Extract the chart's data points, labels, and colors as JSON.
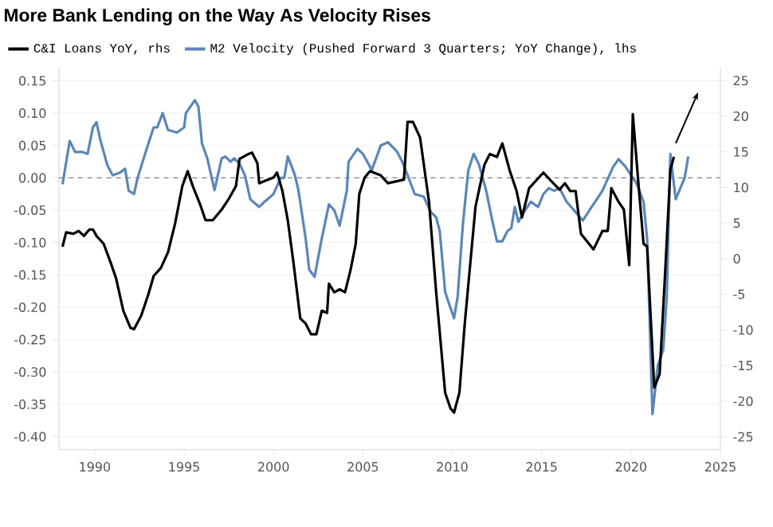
{
  "chart_data": {
    "type": "line",
    "title": "More Bank Lending on the Way As Velocity Rises",
    "xlim": [
      1988,
      2025
    ],
    "xticks": [
      1990,
      1995,
      2000,
      2005,
      2010,
      2015,
      2020,
      2025
    ],
    "ylim": [
      -0.42,
      0.17
    ],
    "yticks": [
      {
        "value": 0.15,
        "label": "0.15"
      },
      {
        "value": 0.1,
        "label": "0.10"
      },
      {
        "value": 0.05,
        "label": "0.05"
      },
      {
        "value": 0,
        "label": "0.00"
      },
      {
        "value": -0.05,
        "label": "-0.05"
      },
      {
        "value": -0.1,
        "label": "-0.10"
      },
      {
        "value": -0.15,
        "label": "-0.15"
      },
      {
        "value": -0.2,
        "label": "-0.20"
      },
      {
        "value": -0.25,
        "label": "-0.25"
      },
      {
        "value": -0.3,
        "label": "-0.30"
      },
      {
        "value": -0.35,
        "label": "-0.35"
      },
      {
        "value": -0.4,
        "label": "-0.40"
      }
    ],
    "y2lim": [
      -26.8,
      26.8
    ],
    "y2ticks": [
      25,
      20,
      15,
      10,
      5,
      0,
      -5,
      -10,
      -15,
      -20,
      -25
    ],
    "grid": "y",
    "legend": "top",
    "line_style": "solid",
    "ref_lines": [
      {
        "axis": "y",
        "value": 0,
        "color": "#808080",
        "line_style": "dashed"
      }
    ],
    "series": [
      {
        "name": "C&I Loans YoY, rhs",
        "color": "#000000",
        "axis": "y2",
        "x": [
          1988.2,
          1988.4,
          1988.8,
          1989.1,
          1989.4,
          1989.7,
          1989.9,
          1990.1,
          1990.5,
          1990.9,
          1991.2,
          1991.6,
          1992.0,
          1992.2,
          1992.6,
          1993.0,
          1993.3,
          1993.7,
          1994.1,
          1994.5,
          1994.9,
          1995.2,
          1995.5,
          1995.9,
          1996.2,
          1996.6,
          1997.1,
          1997.5,
          1997.9,
          1998.1,
          1998.6,
          1998.8,
          1999.1,
          1999.2,
          1999.6,
          2000.0,
          2000.2,
          2000.5,
          2000.8,
          2001.1,
          2001.5,
          2001.8,
          2002.1,
          2002.4,
          2002.7,
          2003.0,
          2003.1,
          2003.4,
          2003.7,
          2004.0,
          2004.3,
          2004.6,
          2004.8,
          2005.1,
          2005.4,
          2006.0,
          2006.4,
          2007.3,
          2007.5,
          2007.8,
          2008.2,
          2008.7,
          2009.1,
          2009.6,
          2009.9,
          2010.1,
          2010.4,
          2010.7,
          2011.3,
          2011.8,
          2012.1,
          2012.5,
          2012.8,
          2013.2,
          2013.6,
          2013.9,
          2014.3,
          2015.1,
          2015.5,
          2016.0,
          2016.3,
          2016.6,
          2016.9,
          2017.2,
          2017.9,
          2018.4,
          2018.7,
          2018.9,
          2019.3,
          2019.6,
          2019.9,
          2020.1,
          2020.4,
          2020.7,
          2020.9,
          2021.3,
          2021.6,
          2021.9,
          2022.2,
          2022.4
        ],
        "values": [
          1.7,
          3.7,
          3.5,
          3.9,
          3.2,
          4.1,
          4.1,
          3.2,
          2.1,
          -0.6,
          -2.8,
          -7.3,
          -9.7,
          -9.9,
          -8.0,
          -5.0,
          -2.4,
          -1.3,
          0.9,
          5.0,
          10.2,
          12.3,
          10.1,
          7.6,
          5.4,
          5.4,
          6.9,
          8.4,
          10.2,
          14.0,
          14.7,
          14.9,
          13.4,
          10.6,
          11.0,
          11.4,
          12.1,
          9.5,
          5.4,
          -0.2,
          -8.4,
          -9.1,
          -10.6,
          -10.6,
          -7.3,
          -7.6,
          -3.5,
          -4.7,
          -4.3,
          -4.7,
          -1.7,
          2.1,
          9.1,
          11.4,
          12.3,
          11.7,
          10.6,
          11.1,
          19.2,
          19.2,
          17.0,
          8.0,
          -4.7,
          -18.8,
          -21.0,
          -21.6,
          -18.8,
          -9.1,
          7.3,
          13.2,
          14.7,
          14.3,
          16.2,
          12.5,
          9.5,
          5.8,
          9.9,
          12.1,
          11.0,
          9.7,
          10.6,
          9.5,
          9.5,
          3.5,
          1.3,
          3.9,
          3.9,
          9.9,
          8.0,
          6.9,
          -0.9,
          20.3,
          11.0,
          2.1,
          1.7,
          -18.1,
          -16.2,
          -2.4,
          12.5,
          14.3
        ]
      },
      {
        "name": "M2 Velocity (Pushed Forward 3 Quarters; YoY Change), lhs",
        "color": "#5b86b8",
        "x": [
          1988.2,
          1988.6,
          1988.9,
          1989.3,
          1989.6,
          1989.9,
          1990.1,
          1990.3,
          1990.7,
          1991.0,
          1991.4,
          1991.7,
          1991.9,
          1992.2,
          1992.4,
          1993.0,
          1993.3,
          1993.5,
          1993.8,
          1994.1,
          1994.6,
          1995.0,
          1995.1,
          1995.6,
          1995.8,
          1996.0,
          1996.3,
          1996.7,
          1997.1,
          1997.3,
          1997.6,
          1997.8,
          1998.1,
          1998.4,
          1998.7,
          1999.2,
          1999.5,
          2000.0,
          2000.4,
          2000.6,
          2000.8,
          2001.2,
          2001.4,
          2001.8,
          2002.0,
          2002.3,
          2002.5,
          2002.7,
          2003.1,
          2003.4,
          2003.7,
          2004.1,
          2004.2,
          2004.7,
          2005.0,
          2005.5,
          2006.0,
          2006.4,
          2006.9,
          2007.2,
          2007.5,
          2007.9,
          2008.4,
          2008.8,
          2009.1,
          2009.3,
          2009.6,
          2009.8,
          2010.1,
          2010.3,
          2010.6,
          2010.9,
          2011.2,
          2011.5,
          2011.9,
          2012.2,
          2012.5,
          2012.8,
          2013.1,
          2013.3,
          2013.5,
          2013.7,
          2014.0,
          2014.4,
          2014.8,
          2015.1,
          2015.4,
          2015.7,
          2016.0,
          2016.4,
          2016.9,
          2017.3,
          2017.8,
          2018.4,
          2019.0,
          2019.3,
          2019.7,
          2020.0,
          2020.3,
          2020.7,
          2020.9,
          2021.2,
          2021.5,
          2021.8,
          2022.0,
          2022.2,
          2022.5,
          2023.0,
          2023.2
        ],
        "values": [
          -0.01,
          0.057,
          0.04,
          0.04,
          0.037,
          0.078,
          0.086,
          0.06,
          0.02,
          0.004,
          0.008,
          0.014,
          -0.02,
          -0.025,
          0.0,
          0.053,
          0.078,
          0.078,
          0.1,
          0.074,
          0.07,
          0.078,
          0.1,
          0.12,
          0.11,
          0.053,
          0.03,
          -0.019,
          0.03,
          0.033,
          0.025,
          0.03,
          0.022,
          0.004,
          -0.033,
          -0.045,
          -0.037,
          -0.025,
          0.0,
          0.0,
          0.033,
          0.004,
          -0.02,
          -0.094,
          -0.142,
          -0.153,
          -0.123,
          -0.094,
          -0.041,
          -0.05,
          -0.074,
          -0.02,
          0.025,
          0.045,
          0.037,
          0.012,
          0.05,
          0.055,
          0.041,
          0.025,
          0.004,
          -0.025,
          -0.029,
          -0.053,
          -0.061,
          -0.082,
          -0.176,
          -0.193,
          -0.217,
          -0.184,
          -0.07,
          0.012,
          0.037,
          0.02,
          -0.02,
          -0.061,
          -0.098,
          -0.098,
          -0.082,
          -0.078,
          -0.045,
          -0.068,
          -0.053,
          -0.037,
          -0.045,
          -0.025,
          -0.016,
          -0.02,
          -0.016,
          -0.037,
          -0.053,
          -0.066,
          -0.045,
          -0.02,
          0.017,
          0.029,
          0.017,
          0.004,
          -0.008,
          -0.037,
          -0.094,
          -0.365,
          -0.29,
          -0.266,
          -0.184,
          0.037,
          -0.033,
          0.0,
          0.033
        ]
      }
    ]
  }
}
